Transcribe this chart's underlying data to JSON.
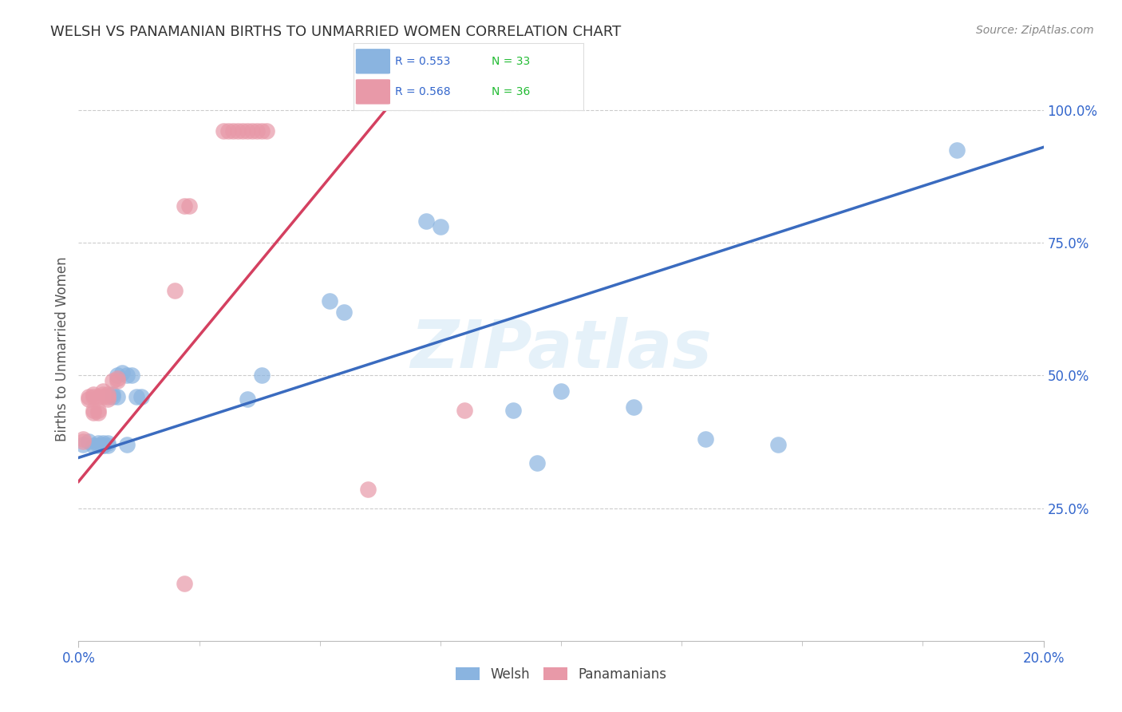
{
  "title": "WELSH VS PANAMANIAN BIRTHS TO UNMARRIED WOMEN CORRELATION CHART",
  "source": "Source: ZipAtlas.com",
  "ylabel": "Births to Unmarried Women",
  "welsh_R": 0.553,
  "welsh_N": 33,
  "panamanian_R": 0.568,
  "panamanian_N": 36,
  "welsh_color": "#8ab4e0",
  "panamanian_color": "#e899a8",
  "welsh_line_color": "#3a6bbf",
  "panamanian_line_color": "#d44060",
  "watermark": "ZIPatlas",
  "welsh_x": [
    0.001,
    0.002,
    0.003,
    0.004,
    0.004,
    0.005,
    0.005,
    0.005,
    0.006,
    0.006,
    0.007,
    0.007,
    0.008,
    0.008,
    0.009,
    0.01,
    0.01,
    0.011,
    0.012,
    0.013,
    0.035,
    0.038,
    0.052,
    0.055,
    0.072,
    0.075,
    0.09,
    0.095,
    0.1,
    0.115,
    0.13,
    0.145,
    0.182
  ],
  "welsh_y": [
    0.37,
    0.375,
    0.368,
    0.368,
    0.372,
    0.368,
    0.372,
    0.368,
    0.368,
    0.372,
    0.465,
    0.46,
    0.46,
    0.5,
    0.505,
    0.37,
    0.5,
    0.5,
    0.46,
    0.46,
    0.455,
    0.5,
    0.64,
    0.62,
    0.79,
    0.78,
    0.435,
    0.335,
    0.47,
    0.44,
    0.38,
    0.37,
    0.925
  ],
  "panamanian_x": [
    0.001,
    0.001,
    0.002,
    0.002,
    0.003,
    0.003,
    0.003,
    0.003,
    0.004,
    0.004,
    0.004,
    0.005,
    0.005,
    0.005,
    0.006,
    0.006,
    0.006,
    0.007,
    0.008,
    0.008,
    0.02,
    0.022,
    0.023,
    0.03,
    0.031,
    0.032,
    0.033,
    0.034,
    0.035,
    0.036,
    0.037,
    0.038,
    0.039,
    0.06,
    0.08,
    0.022
  ],
  "panamanian_y": [
    0.38,
    0.375,
    0.455,
    0.46,
    0.43,
    0.435,
    0.46,
    0.465,
    0.43,
    0.435,
    0.46,
    0.46,
    0.465,
    0.47,
    0.455,
    0.46,
    0.465,
    0.49,
    0.49,
    0.495,
    0.66,
    0.82,
    0.82,
    0.96,
    0.96,
    0.96,
    0.96,
    0.96,
    0.96,
    0.96,
    0.96,
    0.96,
    0.96,
    0.285,
    0.435,
    0.108
  ],
  "xmin": 0.0,
  "xmax": 0.2,
  "ymin": 0.0,
  "ymax": 1.1,
  "yticks": [
    0.25,
    0.5,
    0.75,
    1.0
  ],
  "ytick_labels": [
    "25.0%",
    "50.0%",
    "75.0%",
    "100.0%"
  ],
  "xtick_left_label": "0.0%",
  "xtick_right_label": "20.0%",
  "background_color": "#ffffff",
  "grid_color": "#cccccc",
  "title_color": "#333333",
  "axis_label_color": "#3366cc"
}
